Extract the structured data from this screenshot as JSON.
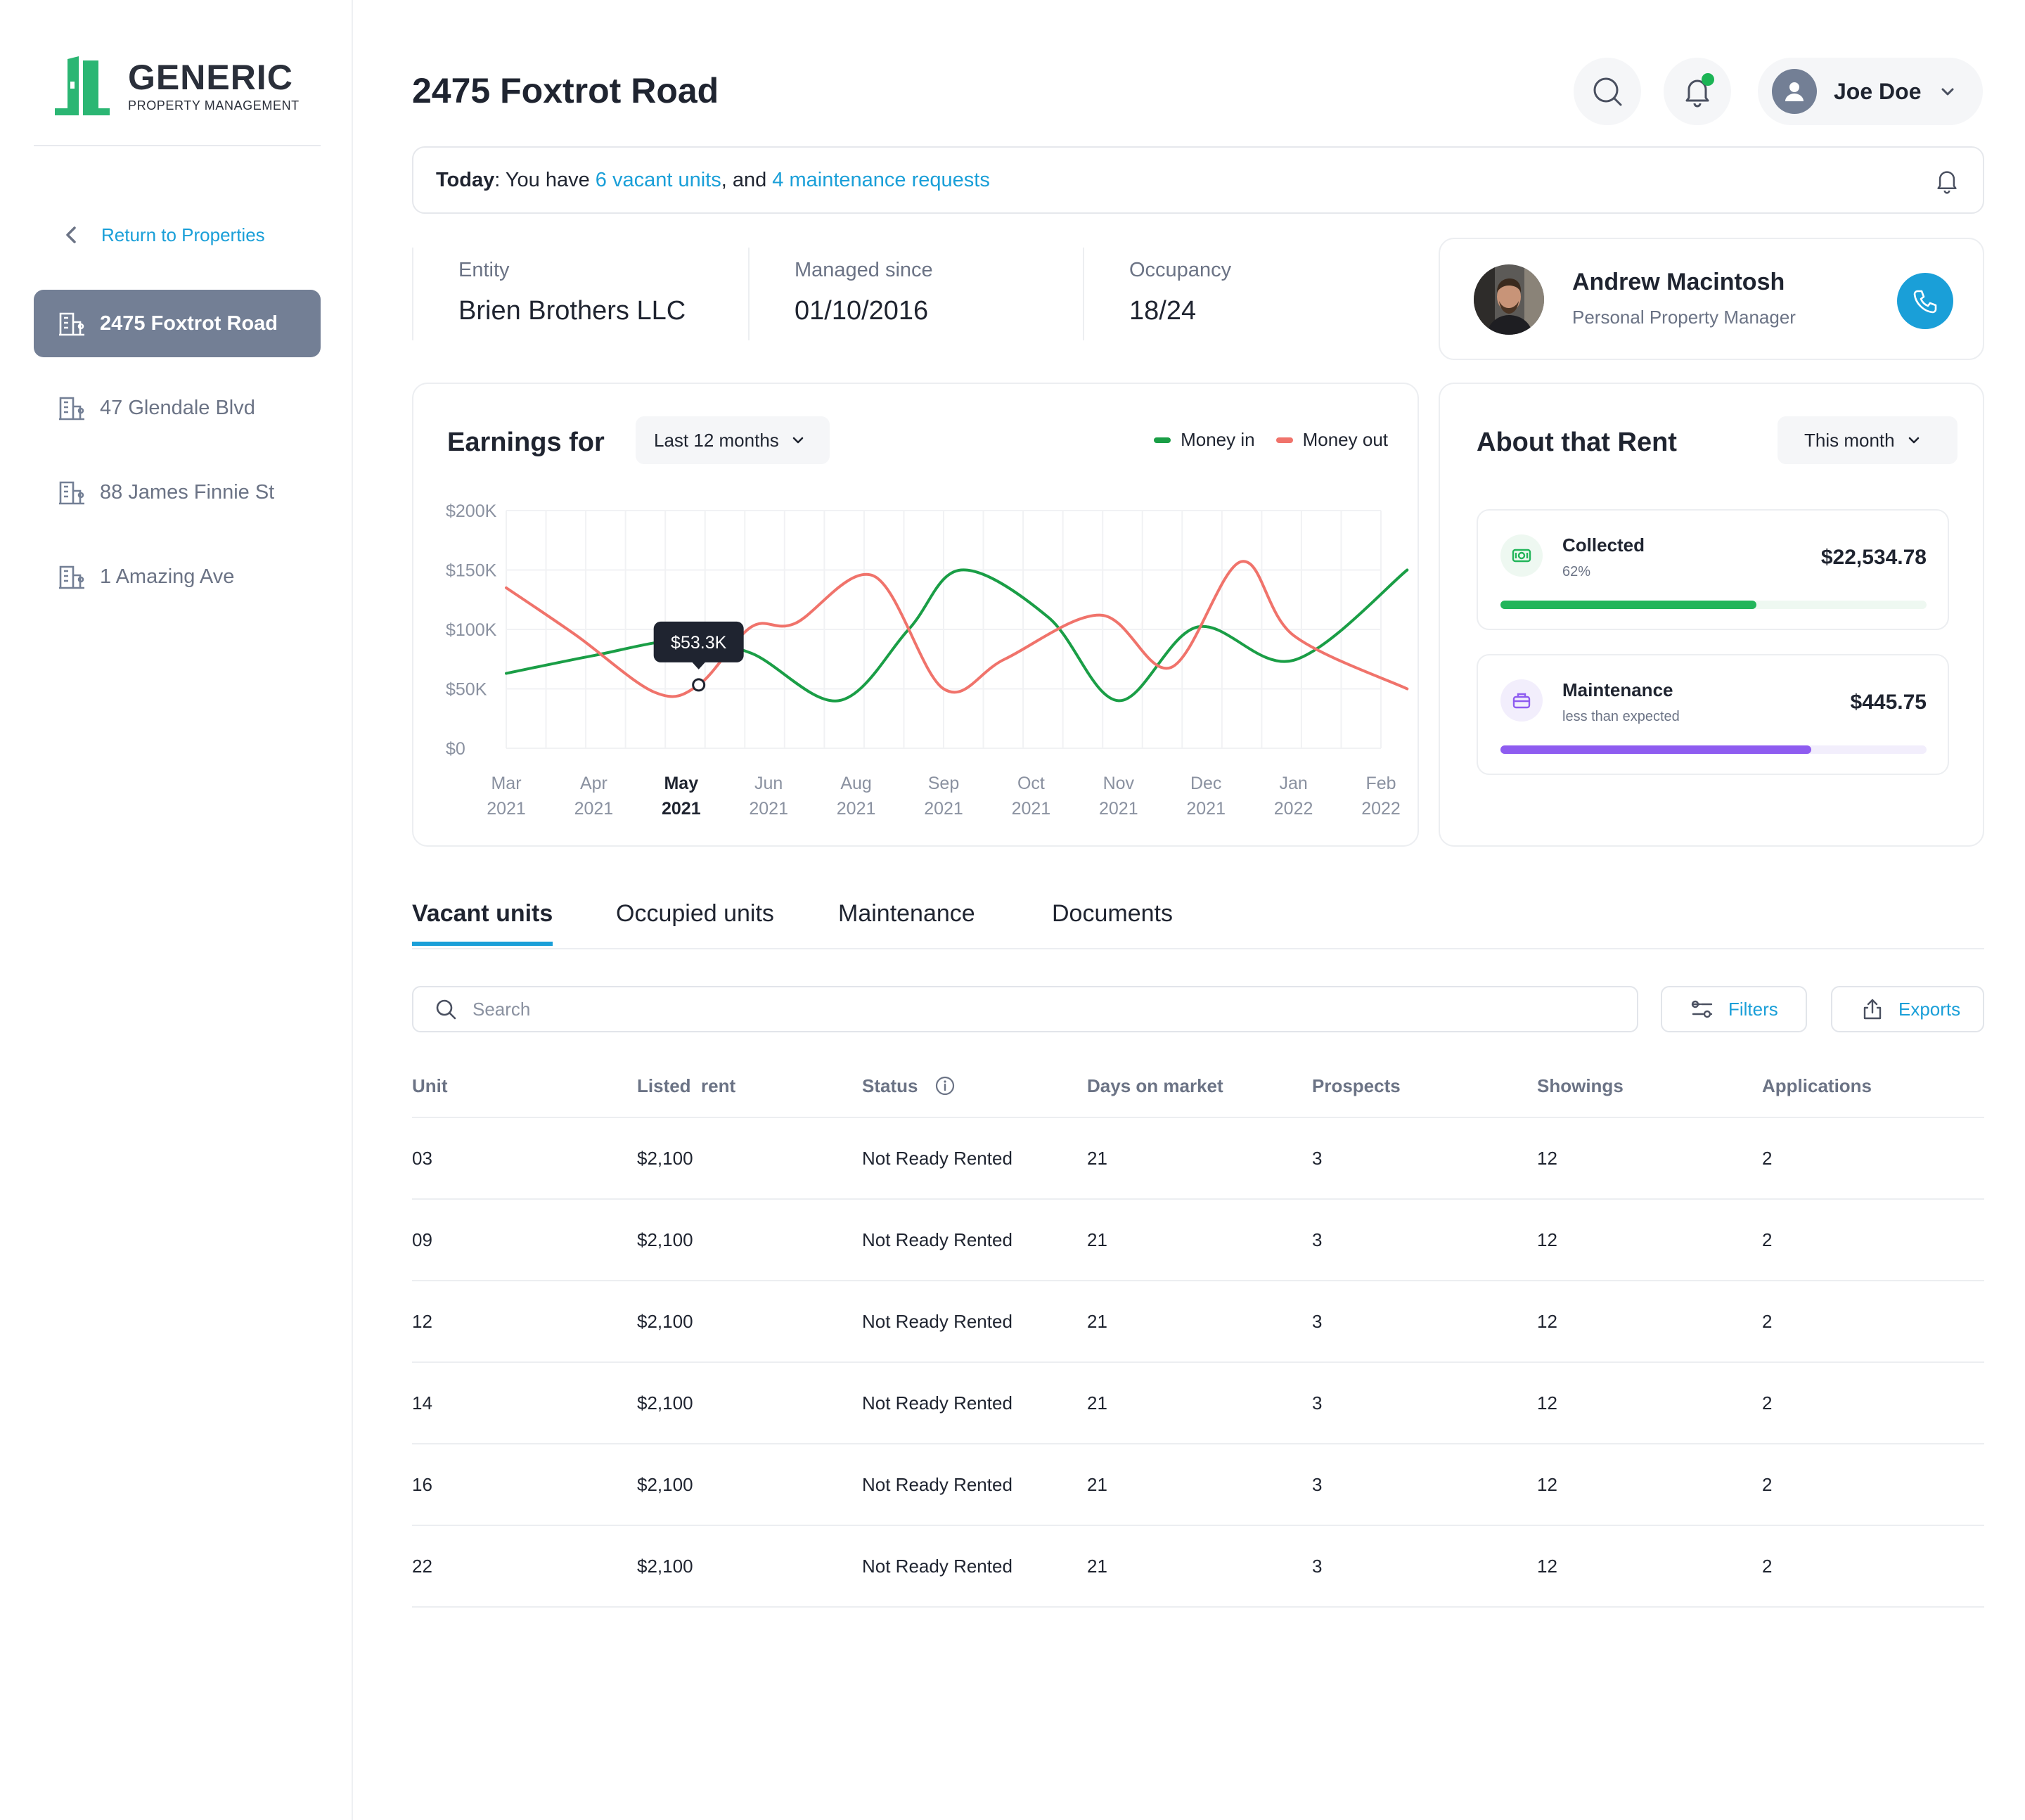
{
  "brand": {
    "name": "GENERIC",
    "tagline": "PROPERTY MANAGEMENT",
    "accent": "#2bb673"
  },
  "sidebar": {
    "return_label": "Return to Properties",
    "items": [
      {
        "label": "2475 Foxtrot Road",
        "active": true
      },
      {
        "label": "47 Glendale Blvd",
        "active": false
      },
      {
        "label": "88 James Finnie St",
        "active": false
      },
      {
        "label": "1 Amazing Ave",
        "active": false
      }
    ]
  },
  "header": {
    "title": "2475 Foxtrot Road",
    "user_name": "Joe Doe",
    "has_notification": true
  },
  "today": {
    "prefix": "Today",
    "middle": ": You have ",
    "vacant_link": "6 vacant units",
    "and": ", and ",
    "maintenance_link": "4 maintenance requests"
  },
  "info": {
    "entity_label": "Entity",
    "entity_value": "Brien Brothers LLC",
    "managed_label": "Managed since",
    "managed_value": "01/10/2016",
    "occupancy_label": "Occupancy",
    "occupancy_value": "18/24"
  },
  "manager": {
    "name": "Andrew Macintosh",
    "role": "Personal Property Manager"
  },
  "earnings": {
    "title": "Earnings for",
    "period": "Last 12 months",
    "legend_in": "Money in",
    "legend_out": "Money out",
    "tooltip": "$53.3K"
  },
  "chart_data": {
    "type": "line",
    "title": "Earnings for",
    "x_months": [
      "Mar",
      "Apr",
      "May",
      "Jun",
      "Aug",
      "Sep",
      "Oct",
      "Nov",
      "Dec",
      "Jan",
      "Feb"
    ],
    "x_years": [
      "2021",
      "2021",
      "2021",
      "2021",
      "2021",
      "2021",
      "2021",
      "2021",
      "2021",
      "2022",
      "2022"
    ],
    "highlight_index": 2,
    "y_ticks": [
      "$200K",
      "$150K",
      "$100K",
      "$50K",
      "$0"
    ],
    "ylim": [
      0,
      200000
    ],
    "grid": true,
    "legend_position": "top-right",
    "series": [
      {
        "name": "Money in",
        "color": "#1a9e46",
        "x": [
          0,
          1,
          2,
          2.8,
          3.8,
          4.6,
          5.2,
          6.2,
          7,
          7.9,
          9,
          10.3
        ],
        "values": [
          63000,
          78000,
          91000,
          80000,
          40000,
          100000,
          150000,
          110000,
          40000,
          102000,
          74000,
          150000
        ]
      },
      {
        "name": "Money out",
        "color": "#f0736b",
        "x": [
          0,
          0.8,
          1.7,
          2.2,
          2.8,
          3.3,
          4.2,
          5,
          5.7,
          6.8,
          7.6,
          8.4,
          9,
          10.3
        ],
        "values": [
          135000,
          95000,
          47000,
          53300,
          102000,
          105000,
          145000,
          50000,
          75000,
          112000,
          68000,
          157000,
          95000,
          50000
        ]
      }
    ],
    "tooltip": {
      "label": "$53.3K",
      "x": 2.2,
      "value": 53300
    }
  },
  "rent": {
    "title": "About that Rent",
    "period": "This month",
    "collected": {
      "label": "Collected",
      "sub": "62%",
      "amount": "$22,534.78",
      "progress": 0.6,
      "color": "#22b55a",
      "track": "#eef8f1"
    },
    "maintenance": {
      "label": "Maintenance",
      "sub": "less than expected",
      "amount": "$445.75",
      "progress": 0.73,
      "color": "#8e5cf0",
      "track": "#f2eefc"
    }
  },
  "tabs": [
    "Vacant units",
    "Occupied units",
    "Maintenance",
    "Documents"
  ],
  "search": {
    "placeholder": "Search"
  },
  "actions": {
    "filters": "Filters",
    "exports": "Exports"
  },
  "table": {
    "headers": [
      "Unit",
      "Listed  rent",
      "Status",
      "Days on market",
      "Prospects",
      "Showings",
      "Applications"
    ],
    "rows": [
      [
        "03",
        "$2,100",
        "Not Ready Rented",
        "21",
        "3",
        "12",
        "2"
      ],
      [
        "09",
        "$2,100",
        "Not Ready Rented",
        "21",
        "3",
        "12",
        "2"
      ],
      [
        "12",
        "$2,100",
        "Not Ready Rented",
        "21",
        "3",
        "12",
        "2"
      ],
      [
        "14",
        "$2,100",
        "Not Ready Rented",
        "21",
        "3",
        "12",
        "2"
      ],
      [
        "16",
        "$2,100",
        "Not Ready Rented",
        "21",
        "3",
        "12",
        "2"
      ],
      [
        "22",
        "$2,100",
        "Not Ready Rented",
        "21",
        "3",
        "12",
        "2"
      ]
    ]
  }
}
